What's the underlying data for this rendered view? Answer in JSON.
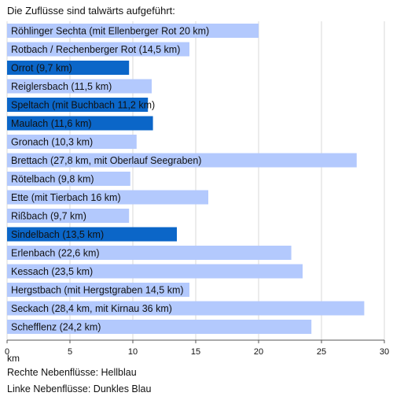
{
  "chart_data": {
    "type": "bar",
    "orientation": "horizontal",
    "title": "Die Zuflüsse sind talwärts aufgeführt:",
    "xlabel": "km",
    "xlim": [
      0,
      30
    ],
    "xticks": [
      "0",
      "5",
      "10",
      "15",
      "20",
      "25",
      "30"
    ],
    "grid": true,
    "colors": {
      "rechts": "#b3c9fd",
      "links": "#0b66c8"
    },
    "bars": [
      {
        "label": "Röhlinger Sechta (mit Ellenberger Rot 20 km)",
        "value": 20.0,
        "side": "rechts"
      },
      {
        "label": "Rotbach / Rechenberger Rot (14,5 km)",
        "value": 14.5,
        "side": "rechts"
      },
      {
        "label": "Orrot (9,7 km)",
        "value": 9.7,
        "side": "links"
      },
      {
        "label": "Reiglersbach (11,5 km)",
        "value": 11.5,
        "side": "rechts"
      },
      {
        "label": "Speltach (mit Buchbach 11,2 km)",
        "value": 11.2,
        "side": "links"
      },
      {
        "label": "Maulach (11,6 km)",
        "value": 11.6,
        "side": "links"
      },
      {
        "label": "Gronach (10,3 km)",
        "value": 10.3,
        "side": "rechts"
      },
      {
        "label": "Brettach (27,8 km, mit Oberlauf Seegraben)",
        "value": 27.8,
        "side": "rechts"
      },
      {
        "label": "Rötelbach (9,8 km)",
        "value": 9.8,
        "side": "rechts"
      },
      {
        "label": "Ette (mit Tierbach 16 km)",
        "value": 16.0,
        "side": "rechts"
      },
      {
        "label": "Rißbach (9,7 km)",
        "value": 9.7,
        "side": "rechts"
      },
      {
        "label": "Sindelbach (13,5 km)",
        "value": 13.5,
        "side": "links"
      },
      {
        "label": "Erlenbach (22,6 km)",
        "value": 22.6,
        "side": "rechts"
      },
      {
        "label": "Kessach (23,5 km)",
        "value": 23.5,
        "side": "rechts"
      },
      {
        "label": "Hergstbach (mit Hergstgraben 14,5 km)",
        "value": 14.5,
        "side": "rechts"
      },
      {
        "label": "Seckach (28,4 km, mit Kirnau 36 km)",
        "value": 28.4,
        "side": "rechts"
      },
      {
        "label": "Schefflenz (24,2 km)",
        "value": 24.2,
        "side": "rechts"
      }
    ],
    "legend": [
      "Rechte Nebenflüsse: Hellblau",
      "Linke Nebenflüsse: Dunkles Blau"
    ]
  }
}
